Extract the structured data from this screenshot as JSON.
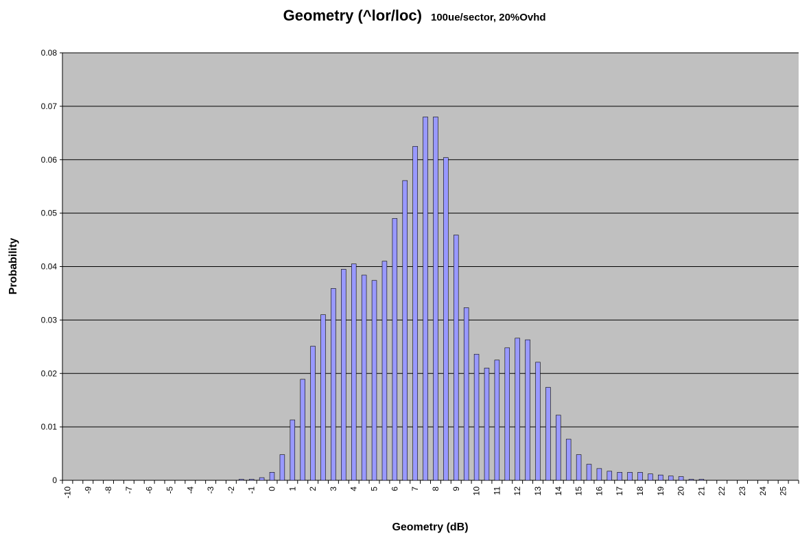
{
  "chart_data": {
    "type": "bar",
    "title": "Geometry (^lor/loc)",
    "subtitle": "100ue/sector, 20%Ovhd",
    "x_label": "Geometry (dB)",
    "y_label": "Probability",
    "categories": [
      "-10",
      null,
      "-9",
      null,
      "-8",
      null,
      "-7",
      null,
      "-6",
      null,
      "-5",
      null,
      "-4",
      null,
      "-3",
      null,
      "-2",
      null,
      "-1",
      null,
      "0",
      null,
      "1",
      null,
      "2",
      null,
      "3",
      null,
      "4",
      null,
      "5",
      null,
      "6",
      null,
      "7",
      null,
      "8",
      null,
      "9",
      null,
      "10",
      null,
      "11",
      null,
      "12",
      null,
      "13",
      null,
      "14",
      null,
      "15",
      null,
      "16",
      null,
      "17",
      null,
      "18",
      null,
      "19",
      null,
      "20",
      null,
      "21",
      null,
      "22",
      null,
      "23",
      null,
      "24",
      null,
      "25",
      null
    ],
    "values": [
      0,
      0,
      0,
      0,
      0,
      0,
      0,
      0,
      0,
      0,
      0,
      0,
      0,
      0,
      0,
      0,
      0,
      0.0002,
      0.0002,
      0.0005,
      0.0015,
      0.0048,
      0.0113,
      0.0189,
      0.0251,
      0.031,
      0.0359,
      0.0395,
      0.0405,
      0.0384,
      0.0374,
      0.041,
      0.049,
      0.0561,
      0.0625,
      0.068,
      0.068,
      0.0604,
      0.0459,
      0.0323,
      0.0236,
      0.021,
      0.0225,
      0.0248,
      0.0266,
      0.0263,
      0.0221,
      0.0174,
      0.0122,
      0.0077,
      0.0048,
      0.003,
      0.0022,
      0.0017,
      0.0015,
      0.0015,
      0.0015,
      0.0012,
      0.001,
      0.0008,
      0.0007,
      0.0002,
      0.0002,
      0,
      0,
      0,
      0,
      0,
      0,
      0,
      0,
      0
    ],
    "color": "#9999ff",
    "plot_background": "#c0c0c0",
    "ylim": [
      0,
      0.08
    ],
    "yticks": [
      0,
      0.01,
      0.02,
      0.03,
      0.04,
      0.05,
      0.06,
      0.07,
      0.08
    ],
    "grid": true
  }
}
